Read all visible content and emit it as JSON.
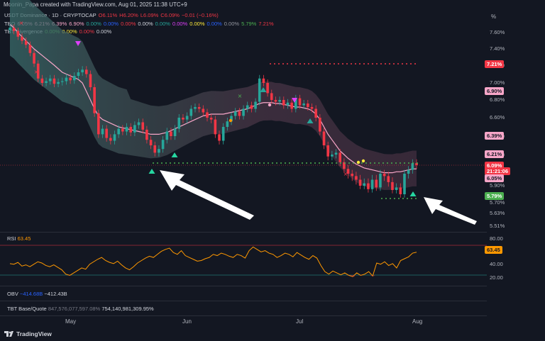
{
  "header": {
    "credit": "Moonin_Papa created with TradingView.com, Aug 01, 2025 11:38 UTC+9"
  },
  "legend": {
    "symbol_line": [
      {
        "text": "USDT Dominance · 1D · CRYPTOCAP",
        "color": "#d1d4dc"
      },
      {
        "text": "O6.11%",
        "color": "#f23645"
      },
      {
        "text": "H6.20%",
        "color": "#f23645"
      },
      {
        "text": "L6.09%",
        "color": "#f23645"
      },
      {
        "text": "C6.09%",
        "color": "#f23645"
      },
      {
        "text": "−0.01 (−0.16%)",
        "color": "#f23645"
      }
    ],
    "tbo_line": [
      {
        "text": "TBO",
        "color": "#d1d4dc"
      },
      {
        "text": "6.05%",
        "color": "#f7a6c8"
      },
      {
        "text": "6.21%",
        "color": "#f7a6c8"
      },
      {
        "text": "6.39%",
        "color": "#f7a6c8"
      },
      {
        "text": "6.90%",
        "color": "#f7a6c8"
      },
      {
        "text": "0.00%",
        "color": "#26a69a"
      },
      {
        "text": "0.00%",
        "color": "#2962ff"
      },
      {
        "text": "0.00%",
        "color": "#f23645"
      },
      {
        "text": "0.00%",
        "color": "#d1d4dc"
      },
      {
        "text": "0.00%",
        "color": "#26a69a"
      },
      {
        "text": "0.00%",
        "color": "#e040fb"
      },
      {
        "text": "0.00%",
        "color": "#ffeb3b"
      },
      {
        "text": "0.00%",
        "color": "#2962ff"
      },
      {
        "text": "0.00%",
        "color": "#9598a1"
      },
      {
        "text": "5.79%",
        "color": "#4caf50"
      },
      {
        "text": "7.21%",
        "color": "#f23645"
      }
    ],
    "tbt_line": [
      {
        "text": "TBT Divergence",
        "color": "#d1d4dc"
      },
      {
        "text": "0.00%",
        "color": "#4caf50"
      },
      {
        "text": "0.00%",
        "color": "#ffeb3b"
      },
      {
        "text": "0.00%",
        "color": "#f23645"
      },
      {
        "text": "0.00%",
        "color": "#d1d4dc"
      }
    ]
  },
  "price_axis": {
    "unit": "%",
    "ticks": [
      "7.60%",
      "7.40%",
      "7.20%",
      "7.00%",
      "6.80%",
      "6.60%",
      "6.40%",
      "6.20%",
      "6.00%",
      "5.90%",
      "5.70%",
      "5.63%",
      "5.51%"
    ],
    "tags": [
      {
        "label": "7.21%",
        "bg": "#f23645",
        "fg": "#ffffff"
      },
      {
        "label": "6.90%",
        "bg": "#f7a6c8",
        "fg": "#131722"
      },
      {
        "label": "6.39%",
        "bg": "#f7a6c8",
        "fg": "#131722"
      },
      {
        "label": "6.21%",
        "bg": "#f7a6c8",
        "fg": "#131722"
      },
      {
        "label": "6.09%",
        "bg": "#f23645",
        "fg": "#ffffff"
      },
      {
        "label": "21:21:06",
        "bg": "#f23645",
        "fg": "#ffffff"
      },
      {
        "label": "6.05%",
        "bg": "#f7a6c8",
        "fg": "#131722"
      },
      {
        "label": "5.79%",
        "bg": "#4caf50",
        "fg": "#ffffff"
      }
    ]
  },
  "rsi": {
    "label": "RSI",
    "value": "63.45",
    "ticks": [
      "80.00",
      "40.00",
      "20.00"
    ],
    "tag": "63.45",
    "values": [
      45,
      44,
      47,
      41,
      43,
      40,
      44,
      48,
      46,
      42,
      40,
      43,
      39,
      35,
      28,
      26,
      30,
      34,
      38,
      36,
      44,
      48,
      52,
      55,
      50,
      47,
      45,
      49,
      43,
      38,
      35,
      40,
      46,
      50,
      54,
      57,
      55,
      60,
      65,
      68,
      70,
      63,
      60,
      66,
      58,
      55,
      52,
      49,
      50,
      53,
      55,
      60,
      58,
      62,
      60,
      57,
      55,
      60,
      58,
      54,
      66,
      72,
      68,
      64,
      66,
      62,
      60,
      55,
      58,
      62,
      60,
      56,
      63,
      59,
      55,
      52,
      58,
      54,
      42,
      32,
      28,
      33,
      30,
      27,
      30,
      26,
      24,
      30,
      26,
      28,
      32,
      25,
      46,
      44,
      48,
      42,
      45,
      38,
      50,
      53,
      56,
      62,
      63.45
    ]
  },
  "obv": {
    "label": "OBV",
    "value1": "−414.68B",
    "value2": "−412.43B"
  },
  "tbt_base": {
    "label": "TBT Base/Quote",
    "value1": "847,576,077,597.08%",
    "value2": "754,140,981,309.95%"
  },
  "time_axis": [
    "May",
    "Jun",
    "Jul",
    "Aug"
  ],
  "footer": {
    "brand": "TradingView"
  },
  "chart_data": {
    "type": "candlestick",
    "title": "USDT Dominance · 1D · CRYPTOCAP",
    "ylim": [
      5.5,
      7.7
    ],
    "closes": [
      7.66,
      7.62,
      7.55,
      7.5,
      7.45,
      7.35,
      7.22,
      7.05,
      7.0,
      7.02,
      7.05,
      6.99,
      7.01,
      7.02,
      7.06,
      7.03,
      7.08,
      7.12,
      7.15,
      7.1,
      6.95,
      6.65,
      6.42,
      6.48,
      6.38,
      6.35,
      6.42,
      6.48,
      6.45,
      6.5,
      6.44,
      6.52,
      6.55,
      6.47,
      6.36,
      6.3,
      6.22,
      6.26,
      6.36,
      6.45,
      6.4,
      6.48,
      6.6,
      6.58,
      6.62,
      6.7,
      6.72,
      6.7,
      6.66,
      6.6,
      6.58,
      6.42,
      6.35,
      6.5,
      6.56,
      6.62,
      6.67,
      6.62,
      6.7,
      6.74,
      6.7,
      6.78,
      7.05,
      7.0,
      6.88,
      6.8,
      6.78,
      6.8,
      6.74,
      6.77,
      6.7,
      6.82,
      6.74,
      6.76,
      6.72,
      6.7,
      6.6,
      6.45,
      6.3,
      6.18,
      6.2,
      6.22,
      6.12,
      6.05,
      6.0,
      5.98,
      5.95,
      5.9,
      5.92,
      5.86,
      5.95,
      5.88,
      6.0,
      5.98,
      5.93,
      5.85,
      5.88,
      5.8,
      6.0,
      6.04,
      6.11,
      6.09
    ],
    "opens": [
      7.63,
      7.66,
      7.62,
      7.55,
      7.5,
      7.45,
      7.35,
      7.22,
      7.05,
      7.0,
      7.02,
      7.05,
      6.99,
      7.01,
      7.02,
      7.06,
      7.03,
      7.08,
      7.12,
      7.15,
      7.1,
      6.95,
      6.65,
      6.42,
      6.48,
      6.38,
      6.35,
      6.42,
      6.48,
      6.45,
      6.5,
      6.44,
      6.52,
      6.55,
      6.47,
      6.36,
      6.3,
      6.22,
      6.26,
      6.36,
      6.45,
      6.4,
      6.48,
      6.6,
      6.58,
      6.62,
      6.7,
      6.72,
      6.7,
      6.66,
      6.6,
      6.58,
      6.42,
      6.35,
      6.5,
      6.56,
      6.62,
      6.67,
      6.62,
      6.7,
      6.74,
      6.7,
      6.78,
      7.05,
      7.0,
      6.88,
      6.8,
      6.78,
      6.8,
      6.74,
      6.77,
      6.7,
      6.82,
      6.74,
      6.76,
      6.72,
      6.7,
      6.6,
      6.45,
      6.3,
      6.18,
      6.2,
      6.22,
      6.12,
      6.05,
      6.0,
      5.98,
      5.95,
      5.9,
      5.92,
      5.86,
      5.95,
      5.88,
      6.0,
      5.98,
      5.93,
      5.85,
      5.88,
      5.8,
      6.0,
      6.04,
      6.11
    ],
    "resistance_level": 7.21,
    "support_levels": [
      6.05,
      5.79
    ],
    "ma": [
      7.7,
      7.66,
      7.6,
      7.55,
      7.5,
      7.45,
      7.4,
      7.36,
      7.32,
      7.28,
      7.24,
      7.2,
      7.16,
      7.12,
      7.1,
      7.08,
      7.06,
      7.04,
      7.0,
      6.9,
      6.8,
      6.7,
      6.62,
      6.58,
      6.56,
      6.54,
      6.52,
      6.5,
      6.49,
      6.48,
      6.47,
      6.46,
      6.45,
      6.44,
      6.43,
      6.42,
      6.42,
      6.42,
      6.43,
      6.44,
      6.46,
      6.48,
      6.5,
      6.52,
      6.54,
      6.56,
      6.58,
      6.6,
      6.62,
      6.63,
      6.64,
      6.64,
      6.64,
      6.64,
      6.65,
      6.66,
      6.67,
      6.68,
      6.69,
      6.7,
      6.72,
      6.74,
      6.76,
      6.77,
      6.77,
      6.77,
      6.76,
      6.76,
      6.75,
      6.74,
      6.73,
      6.72,
      6.72,
      6.71,
      6.7,
      6.68,
      6.64,
      6.58,
      6.5,
      6.42,
      6.36,
      6.3,
      6.24,
      6.2,
      6.16,
      6.13,
      6.1,
      6.08,
      6.06,
      6.05,
      6.04,
      6.03,
      6.02,
      6.01,
      6.01,
      6.01,
      6.02,
      6.02,
      6.03,
      6.04,
      6.05,
      6.05
    ]
  }
}
